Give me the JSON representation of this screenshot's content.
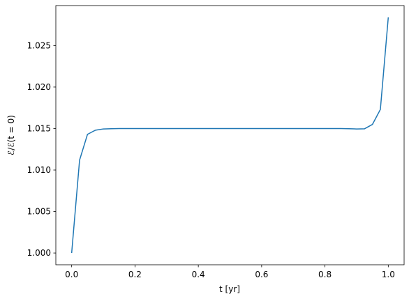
{
  "chart_data": {
    "type": "line",
    "xlabel": "t [yr]",
    "ylabel": "ℰ/ℰ(t = 0)",
    "x": [
      0,
      0.025,
      0.05,
      0.075,
      0.1,
      0.125,
      0.15,
      0.175,
      0.2,
      0.225,
      0.25,
      0.275,
      0.3,
      0.325,
      0.35,
      0.375,
      0.4,
      0.425,
      0.45,
      0.475,
      0.5,
      0.525,
      0.55,
      0.575,
      0.6,
      0.625,
      0.65,
      0.675,
      0.7,
      0.725,
      0.75,
      0.775,
      0.8,
      0.825,
      0.85,
      0.875,
      0.9,
      0.925,
      0.95,
      0.975,
      1.0
    ],
    "series": [
      {
        "color": "#1f77b4",
        "values": [
          1.0,
          1.0112,
          1.0143,
          1.0148,
          1.01495,
          1.01498,
          1.015,
          1.015,
          1.015,
          1.015,
          1.015,
          1.015,
          1.015,
          1.015,
          1.015,
          1.015,
          1.015,
          1.015,
          1.015,
          1.015,
          1.015,
          1.015,
          1.015,
          1.015,
          1.015,
          1.015,
          1.015,
          1.015,
          1.015,
          1.015,
          1.015,
          1.015,
          1.015,
          1.015,
          1.015,
          1.01498,
          1.01495,
          1.01497,
          1.0155,
          1.0173,
          1.0284
        ]
      }
    ],
    "xlim": [
      -0.05,
      1.05
    ],
    "ylim": [
      0.99858,
      1.02982
    ],
    "xticks": [
      {
        "value": 0,
        "label": "0.0"
      },
      {
        "value": 0.2,
        "label": "0.2"
      },
      {
        "value": 0.4,
        "label": "0.4"
      },
      {
        "value": 0.6,
        "label": "0.6"
      },
      {
        "value": 0.8,
        "label": "0.8"
      },
      {
        "value": 1,
        "label": "1.0"
      }
    ],
    "yticks": [
      {
        "value": 1,
        "label": "1.000"
      },
      {
        "value": 1.005,
        "label": "1.005"
      },
      {
        "value": 1.01,
        "label": "1.010"
      },
      {
        "value": 1.015,
        "label": "1.015"
      },
      {
        "value": 1.02,
        "label": "1.020"
      },
      {
        "value": 1.025,
        "label": "1.025"
      }
    ],
    "grid": false
  }
}
